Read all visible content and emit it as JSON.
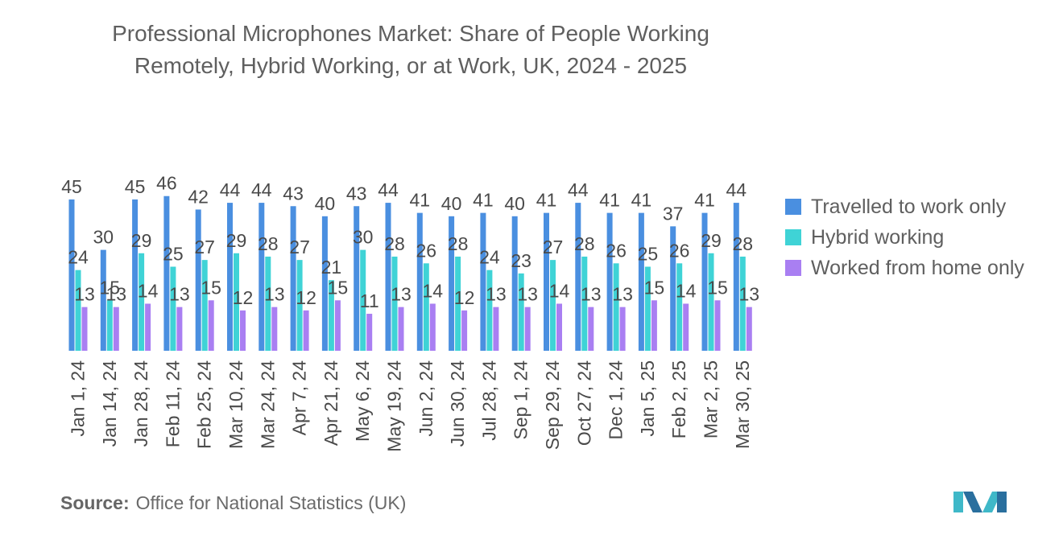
{
  "title_line1": "Professional Microphones Market: Share of People Working",
  "title_line2": "Remotely, Hybrid Working, or at Work, UK, 2024 - 2025",
  "source_label": "Source:",
  "source_text": "Office for National Statistics (UK)",
  "chart_data": {
    "type": "bar",
    "title": "Professional Microphones Market: Share of People Working Remotely, Hybrid Working, or at Work, UK, 2024 - 2025",
    "xlabel": "",
    "ylabel": "",
    "grid": false,
    "legend_position": "right",
    "categories": [
      "Jan 1, 24",
      "Jan 14, 24",
      "Jan 28, 24",
      "Feb 11, 24",
      "Feb 25, 24",
      "Mar 10, 24",
      "Mar 24, 24",
      "Apr 7, 24",
      "Apr 21, 24",
      "May 6, 24",
      "May 19, 24",
      "Jun 2, 24",
      "Jun 30, 24",
      "Jul 28, 24",
      "Sep 1, 24",
      "Sep 29, 24",
      "Oct 27, 24",
      "Dec 1, 24",
      "Jan 5, 25",
      "Feb 2, 25",
      "Mar 2, 25",
      "Mar 30, 25"
    ],
    "series": [
      {
        "name": "Travelled to work only",
        "color": "#4a8fe0",
        "values": [
          45,
          30,
          45,
          46,
          42,
          44,
          44,
          43,
          40,
          43,
          44,
          41,
          40,
          41,
          40,
          41,
          44,
          41,
          41,
          37,
          41,
          44
        ]
      },
      {
        "name": "Hybrid working",
        "color": "#3fd3d6",
        "values": [
          24,
          15,
          29,
          25,
          27,
          29,
          28,
          27,
          21,
          30,
          28,
          26,
          28,
          24,
          23,
          27,
          28,
          26,
          25,
          26,
          29,
          28
        ]
      },
      {
        "name": "Worked from home only",
        "color": "#a97ff2",
        "values": [
          13,
          13,
          14,
          13,
          15,
          12,
          13,
          12,
          15,
          11,
          13,
          14,
          12,
          13,
          13,
          14,
          13,
          13,
          15,
          14,
          15,
          13
        ]
      }
    ]
  }
}
